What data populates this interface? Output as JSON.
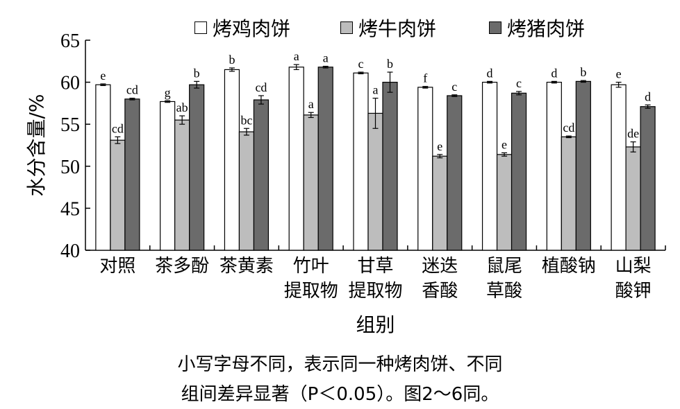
{
  "legend": {
    "items": [
      {
        "name": "烤鸡肉饼",
        "color": "#ffffff"
      },
      {
        "name": "烤牛肉饼",
        "color": "#bdbdbd"
      },
      {
        "name": "烤猪肉饼",
        "color": "#6b6b6b"
      }
    ]
  },
  "note": {
    "line1": "小写字母不同，表示同一种烤肉饼、不同",
    "line2": "组间差异显著（P＜0.05）。图2～6同。"
  },
  "chart_data": {
    "type": "bar",
    "ylabel": "水分含量/%",
    "xlabel": "组别",
    "ylim": [
      40,
      65
    ],
    "yticks": [
      40,
      45,
      50,
      55,
      60,
      65
    ],
    "categories": [
      [
        "对照"
      ],
      [
        "茶多酚"
      ],
      [
        "茶黄素"
      ],
      [
        "竹叶",
        "提取物"
      ],
      [
        "甘草",
        "提取物"
      ],
      [
        "迷迭",
        "香酸"
      ],
      [
        "鼠尾",
        "草酸"
      ],
      [
        "植酸钠"
      ],
      [
        "山梨",
        "酸钾"
      ]
    ],
    "series": [
      {
        "name": "烤鸡肉饼",
        "color": "#ffffff",
        "values": [
          59.7,
          57.7,
          61.5,
          61.8,
          61.1,
          59.4,
          60.0,
          60.0,
          59.7
        ],
        "errors": [
          0.1,
          0.1,
          0.2,
          0.3,
          0.1,
          0.1,
          0.1,
          0.1,
          0.3
        ],
        "labels": [
          "e",
          "g",
          "b",
          "a",
          "c",
          "f",
          "d",
          "d",
          "e"
        ]
      },
      {
        "name": "烤牛肉饼",
        "color": "#bdbdbd",
        "values": [
          53.1,
          55.5,
          54.1,
          56.1,
          56.3,
          51.2,
          51.4,
          53.5,
          52.3
        ],
        "errors": [
          0.4,
          0.5,
          0.4,
          0.3,
          1.8,
          0.2,
          0.2,
          0.1,
          0.6
        ],
        "labels": [
          "cd",
          "ab",
          "bc",
          "a",
          "a",
          "e",
          "e",
          "cd",
          "de"
        ]
      },
      {
        "name": "烤猪肉饼",
        "color": "#6b6b6b",
        "values": [
          58.0,
          59.7,
          57.9,
          61.8,
          60.0,
          58.4,
          58.7,
          60.1,
          57.1
        ],
        "errors": [
          0.1,
          0.4,
          0.5,
          0.1,
          1.2,
          0.1,
          0.2,
          0.1,
          0.2
        ],
        "labels": [
          "cd",
          "b",
          "cd",
          "a",
          "b",
          "c",
          "c",
          "b",
          "d"
        ]
      }
    ],
    "grid": false,
    "legend_position": "top"
  }
}
